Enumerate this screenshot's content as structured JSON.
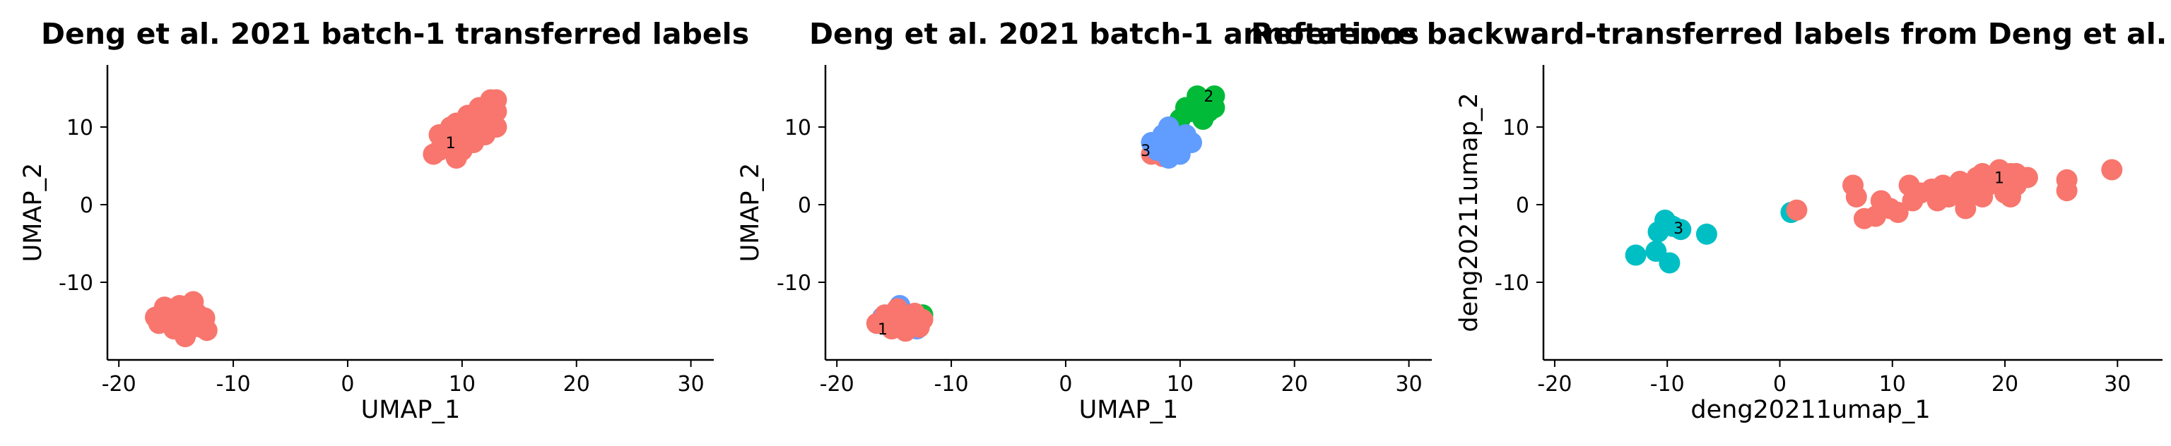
{
  "colors": {
    "cluster_1": "#F8766D",
    "cluster_2": "#00BA38",
    "cluster_3": "#619CFF",
    "cluster_3_alt": "#00BFC4"
  },
  "chart_data": [
    {
      "type": "scatter",
      "title": "Deng et al. 2021 batch-1 transferred labels",
      "xlabel": "UMAP_1",
      "ylabel": "UMAP_2",
      "xlim": [
        -21,
        32
      ],
      "ylim": [
        -20,
        18
      ],
      "xticks": [
        "-20",
        "-10",
        "0",
        "10",
        "20",
        "30"
      ],
      "yticks": [
        "-10",
        "0",
        "10"
      ],
      "series": [
        {
          "color": "#F8766D",
          "points": [
            [
              -14.5,
              -15
            ],
            [
              -15.8,
              -14.2
            ],
            [
              -13.2,
              -14.0
            ],
            [
              -14.0,
              -16.3
            ],
            [
              -15.2,
              -16.0
            ],
            [
              -12.8,
              -15.8
            ],
            [
              -16.5,
              -15.3
            ],
            [
              -14.7,
              -13.0
            ],
            [
              -13.5,
              -12.5
            ],
            [
              -16.0,
              -13.2
            ],
            [
              -12.5,
              -14.6
            ],
            [
              -15.5,
              -15.0
            ],
            [
              -13.8,
              -15.3
            ],
            [
              -16.8,
              -14.5
            ],
            [
              -12.3,
              -16.2
            ],
            [
              -14.2,
              -17.0
            ],
            [
              8,
              7
            ],
            [
              9,
              8
            ],
            [
              10,
              9
            ],
            [
              11,
              10
            ],
            [
              12,
              11
            ],
            [
              13,
              12
            ],
            [
              10,
              7
            ],
            [
              11,
              8
            ],
            [
              12,
              9
            ],
            [
              13,
              10
            ],
            [
              8,
              9
            ],
            [
              9,
              10
            ],
            [
              7.5,
              6.5
            ],
            [
              9.5,
              6.0
            ],
            [
              12.5,
              13.5
            ],
            [
              11.5,
              12.5
            ],
            [
              10.5,
              11.5
            ],
            [
              9.5,
              10.5
            ],
            [
              8.5,
              8.5
            ],
            [
              10,
              10
            ],
            [
              11,
              11
            ],
            [
              12,
              12
            ],
            [
              13,
              13.5
            ]
          ]
        }
      ],
      "labels": [
        {
          "text": "1",
          "x": 9,
          "y": 8
        }
      ]
    },
    {
      "type": "scatter",
      "title": "Deng et al. 2021 batch-1 annotations",
      "xlabel": "UMAP_1",
      "ylabel": "UMAP_2",
      "xlim": [
        -21,
        32
      ],
      "ylim": [
        -20,
        18
      ],
      "xticks": [
        "-20",
        "-10",
        "0",
        "10",
        "20",
        "30"
      ],
      "yticks": [
        "-10",
        "0",
        "10"
      ],
      "series": [
        {
          "color": "#F8766D",
          "points": [
            [
              7.5,
              6.5
            ],
            [
              8.5,
              6.2
            ]
          ]
        },
        {
          "color": "#00BA38",
          "points": [
            [
              12,
              13
            ],
            [
              13,
              14
            ],
            [
              11,
              12
            ],
            [
              12.5,
              12
            ],
            [
              11.5,
              14
            ],
            [
              10,
              11
            ],
            [
              13,
              12.5
            ],
            [
              10.5,
              12.5
            ],
            [
              12,
              11
            ],
            [
              -12.5,
              -14.2
            ]
          ]
        },
        {
          "color": "#619CFF",
          "points": [
            [
              7.5,
              8
            ],
            [
              8.5,
              9
            ],
            [
              9.5,
              8
            ],
            [
              10.5,
              9
            ],
            [
              9,
              10
            ],
            [
              8,
              7
            ],
            [
              10,
              7
            ],
            [
              11,
              8
            ],
            [
              9,
              6
            ],
            [
              10,
              6.5
            ],
            [
              -14.5,
              -13
            ],
            [
              -16,
              -14.5
            ],
            [
              -13,
              -16
            ]
          ]
        },
        {
          "color": "#F8766D",
          "points": [
            [
              -14.5,
              -15
            ],
            [
              -15.8,
              -14.2
            ],
            [
              -13.2,
              -14.0
            ],
            [
              -14.0,
              -16.3
            ],
            [
              -15.2,
              -16.0
            ],
            [
              -12.8,
              -15.8
            ],
            [
              -16.5,
              -15.3
            ],
            [
              -14.7,
              -13.4
            ],
            [
              -13.8,
              -15.3
            ],
            [
              -12.5,
              -14.8
            ]
          ]
        }
      ],
      "labels": [
        {
          "text": "2",
          "x": 12.5,
          "y": 14
        },
        {
          "text": "3",
          "x": 7,
          "y": 7
        },
        {
          "text": "1",
          "x": -16,
          "y": -16
        }
      ]
    },
    {
      "type": "scatter",
      "title": "Reference backward-transferred labels from Deng et al.",
      "xlabel": "deng20211umap_1",
      "ylabel": "deng20211umap_2",
      "xlim": [
        -21,
        34
      ],
      "ylim": [
        -20,
        18
      ],
      "xticks": [
        "-20",
        "-10",
        "0",
        "10",
        "20",
        "30"
      ],
      "yticks": [
        "-10",
        "0",
        "10"
      ],
      "series": [
        {
          "color": "#00BFC4",
          "points": [
            [
              -12.8,
              -6.5
            ],
            [
              -11,
              -6
            ],
            [
              -10.8,
              -3.5
            ],
            [
              -10.2,
              -2.0
            ],
            [
              -9.8,
              -7.5
            ],
            [
              -9.5,
              -2.8
            ],
            [
              -8.8,
              -3.2
            ],
            [
              -6.5,
              -3.8
            ],
            [
              1,
              -1
            ]
          ]
        },
        {
          "color": "#F8766D",
          "points": [
            [
              1.5,
              -0.7
            ],
            [
              6.5,
              2.5
            ],
            [
              6.8,
              1.0
            ],
            [
              7.5,
              -1.8
            ],
            [
              8.5,
              -1.5
            ],
            [
              9,
              0.5
            ],
            [
              9.8,
              -0.5
            ],
            [
              10.5,
              -1.0
            ],
            [
              11.5,
              2.5
            ],
            [
              11.8,
              0.5
            ],
            [
              12.5,
              1.5
            ],
            [
              13.5,
              2.0
            ],
            [
              14,
              0.5
            ],
            [
              14.5,
              2.5
            ],
            [
              15,
              1.0
            ],
            [
              16,
              3.0
            ],
            [
              16.5,
              1.5
            ],
            [
              17,
              2.0
            ],
            [
              17.5,
              3.5
            ],
            [
              18,
              4.0
            ],
            [
              18.5,
              2.5
            ],
            [
              19,
              3.0
            ],
            [
              19.5,
              4.5
            ],
            [
              20,
              3.5
            ],
            [
              20.5,
              4.0
            ],
            [
              21,
              4.0
            ],
            [
              21.5,
              3.5
            ],
            [
              22,
              3.5
            ],
            [
              16.5,
              -0.5
            ],
            [
              18,
              1.0
            ],
            [
              20,
              1.5
            ],
            [
              20.5,
              1.0
            ],
            [
              21,
              2.5
            ],
            [
              25.5,
              3.2
            ],
            [
              25.5,
              1.8
            ],
            [
              29.5,
              4.5
            ]
          ]
        }
      ],
      "labels": [
        {
          "text": "3",
          "x": -9,
          "y": -3
        },
        {
          "text": "1",
          "x": 19.5,
          "y": 3.5
        }
      ]
    }
  ]
}
